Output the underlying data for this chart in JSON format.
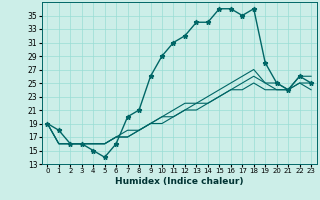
{
  "title": "",
  "xlabel": "Humidex (Indice chaleur)",
  "bg_color": "#cceee8",
  "grid_color": "#99ddd5",
  "line_color": "#006666",
  "xlim": [
    -0.5,
    23.5
  ],
  "ylim": [
    13,
    37
  ],
  "yticks": [
    13,
    15,
    17,
    19,
    21,
    23,
    25,
    27,
    29,
    31,
    33,
    35
  ],
  "xticks": [
    0,
    1,
    2,
    3,
    4,
    5,
    6,
    7,
    8,
    9,
    10,
    11,
    12,
    13,
    14,
    15,
    16,
    17,
    18,
    19,
    20,
    21,
    22,
    23
  ],
  "main_y": [
    19,
    18,
    16,
    16,
    15,
    14,
    16,
    20,
    21,
    26,
    29,
    31,
    32,
    34,
    34,
    36,
    36,
    35,
    36,
    28,
    25,
    24,
    26,
    25
  ],
  "line2_y": [
    19,
    16,
    16,
    16,
    16,
    16,
    17,
    18,
    18,
    19,
    20,
    21,
    22,
    22,
    23,
    24,
    25,
    26,
    27,
    25,
    25,
    24,
    26,
    26
  ],
  "line3_y": [
    19,
    16,
    16,
    16,
    16,
    16,
    17,
    17,
    18,
    19,
    20,
    20,
    21,
    22,
    22,
    23,
    24,
    25,
    26,
    25,
    24,
    24,
    25,
    25
  ],
  "line4_y": [
    19,
    16,
    16,
    16,
    16,
    16,
    17,
    17,
    18,
    19,
    19,
    20,
    21,
    21,
    22,
    23,
    24,
    24,
    25,
    24,
    24,
    24,
    25,
    24
  ]
}
